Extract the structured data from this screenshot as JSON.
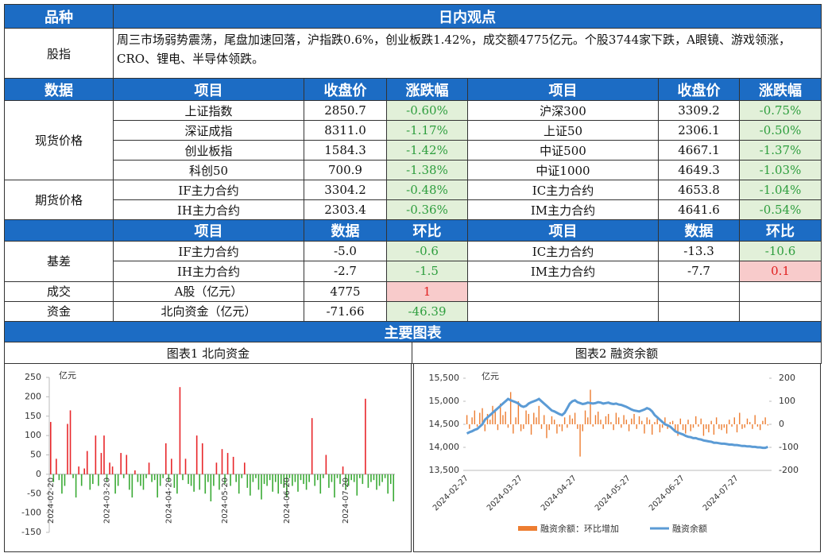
{
  "header": {
    "category": "品种",
    "view": "日内观点"
  },
  "overview": {
    "label": "股指",
    "text": "周三市场弱势震荡，尾盘加速回落，沪指跌0.6%，创业板跌1.42%，成交额4775亿元。个股3744家下跌，A眼镜、游戏领涨，CRO、锂电、半导体领跌。"
  },
  "prices": {
    "headers": [
      "数据",
      "项目",
      "收盘价",
      "涨跌幅",
      "项目",
      "收盘价",
      "涨跌幅"
    ],
    "groups": [
      {
        "label": "现货价格",
        "rows": [
          [
            "上证指数",
            "2850.7",
            "-0.60%",
            "沪深300",
            "3309.2",
            "-0.75%"
          ],
          [
            "深证成指",
            "8311.0",
            "-1.17%",
            "上证50",
            "2306.1",
            "-0.50%"
          ],
          [
            "创业板指",
            "1584.3",
            "-1.42%",
            "中证500",
            "4667.1",
            "-1.37%"
          ],
          [
            "科创50",
            "700.9",
            "-1.38%",
            "中证1000",
            "4649.3",
            "-1.03%"
          ]
        ]
      },
      {
        "label": "期货价格",
        "rows": [
          [
            "IF主力合约",
            "3304.2",
            "-0.48%",
            "IC主力合约",
            "4653.8",
            "-1.04%"
          ],
          [
            "IH主力合约",
            "2303.4",
            "-0.36%",
            "IM主力合约",
            "4641.6",
            "-0.54%"
          ]
        ]
      }
    ]
  },
  "basis": {
    "headers": [
      "项目",
      "数据",
      "环比",
      "项目",
      "数据",
      "环比"
    ],
    "groups": [
      {
        "label": "基差",
        "rows": [
          [
            "IF主力合约",
            "-5.0",
            "-0.6",
            "IC主力合约",
            "-13.3",
            "-10.6"
          ],
          [
            "IH主力合约",
            "-2.7",
            "-1.5",
            "IM主力合约",
            "-7.7",
            "0.1"
          ]
        ]
      },
      {
        "label": "成交",
        "rows": [
          [
            "A股（亿元）",
            "4775",
            "1"
          ]
        ]
      },
      {
        "label": "资金",
        "rows": [
          [
            "北向资金（亿元）",
            "-71.66",
            "-46.39"
          ]
        ]
      }
    ]
  },
  "sections": {
    "charts": "主要图表"
  },
  "chart_data": [
    {
      "type": "bar",
      "title": "图表1  北向资金",
      "y_label": "亿元",
      "positive_color": "#e8262a",
      "negative_color": "#3aaa35",
      "ylim": [
        -150,
        250
      ],
      "yticks": [
        -150,
        -100,
        -50,
        0,
        50,
        100,
        150,
        200,
        250
      ],
      "categories": [
        "2024-02-20",
        null,
        null,
        null,
        null,
        null,
        null,
        null,
        null,
        null,
        null,
        null,
        null,
        null,
        null,
        null,
        null,
        null,
        null,
        null,
        "2024-03-20",
        null,
        null,
        null,
        null,
        null,
        null,
        null,
        null,
        null,
        null,
        null,
        null,
        null,
        null,
        null,
        null,
        null,
        null,
        null,
        null,
        null,
        "2024-04-20",
        null,
        null,
        null,
        null,
        null,
        null,
        null,
        null,
        null,
        null,
        null,
        null,
        null,
        null,
        null,
        null,
        null,
        null,
        null,
        "2024-05-20",
        null,
        null,
        null,
        null,
        null,
        null,
        null,
        null,
        null,
        null,
        null,
        null,
        null,
        null,
        null,
        null,
        null,
        null,
        null,
        null,
        null,
        "2024-06-20",
        null,
        null,
        null,
        null,
        null,
        null,
        null,
        null,
        null,
        null,
        null,
        null,
        null,
        null,
        null,
        null,
        null,
        null,
        null,
        null,
        "2024-07-20",
        null,
        null,
        null,
        null,
        null,
        null,
        null,
        null,
        null,
        null,
        null,
        null,
        null,
        null,
        null,
        null,
        null
      ],
      "values": [
        135,
        -20,
        40,
        -15,
        -50,
        -30,
        130,
        165,
        -10,
        -60,
        20,
        -30,
        15,
        60,
        -40,
        -25,
        100,
        -30,
        55,
        100,
        -20,
        30,
        20,
        -50,
        -30,
        55,
        -10,
        50,
        -40,
        -60,
        10,
        -20,
        -30,
        -40,
        -10,
        30,
        -20,
        -15,
        -60,
        -30,
        -10,
        80,
        -20,
        40,
        -35,
        -50,
        225,
        -15,
        40,
        -25,
        -30,
        -45,
        100,
        -40,
        80,
        -50,
        -20,
        -70,
        -30,
        30,
        -40,
        65,
        -25,
        55,
        -30,
        45,
        -20,
        -50,
        -10,
        30,
        -35,
        -55,
        -20,
        -10,
        -40,
        -65,
        -25,
        -30,
        -15,
        -45,
        -20,
        -50,
        -25,
        -35,
        -60,
        -10,
        -30,
        -20,
        -45,
        -15,
        -25,
        -40,
        -20,
        145,
        -30,
        -15,
        -50,
        -10,
        50,
        -35,
        -20,
        -60,
        -10,
        -25,
        20,
        -40,
        -30,
        -15,
        -20,
        -55,
        -10,
        -25,
        195,
        -35,
        -20,
        -15,
        -40,
        -30,
        -20,
        -10,
        -50,
        -25,
        -70
      ]
    },
    {
      "type": "combo",
      "title": "图表2  融资余额",
      "y_label": "亿元",
      "ylim": [
        13500,
        15500
      ],
      "yticks": [
        {
          "value": 13500,
          "label": "13,500"
        },
        {
          "value": 14000,
          "label": "14,000"
        },
        {
          "value": 14500,
          "label": "14,500"
        },
        {
          "value": 15000,
          "label": "15,000"
        },
        {
          "value": 15500,
          "label": "15,500"
        }
      ],
      "y2lim": [
        -200,
        200
      ],
      "y2ticks": [
        -200,
        -100,
        0,
        100,
        200
      ],
      "categories": [
        "2024-02-27",
        null,
        null,
        null,
        null,
        null,
        null,
        null,
        null,
        null,
        null,
        null,
        null,
        null,
        null,
        null,
        null,
        null,
        null,
        null,
        null,
        "2024-03-27",
        null,
        null,
        null,
        null,
        null,
        null,
        null,
        null,
        null,
        null,
        null,
        null,
        null,
        null,
        null,
        null,
        null,
        null,
        null,
        null,
        "2024-04-27",
        null,
        null,
        null,
        null,
        null,
        null,
        null,
        null,
        null,
        null,
        null,
        null,
        null,
        null,
        null,
        null,
        null,
        null,
        null,
        null,
        "2024-05-27",
        null,
        null,
        null,
        null,
        null,
        null,
        null,
        null,
        null,
        null,
        null,
        null,
        null,
        null,
        null,
        null,
        null,
        null,
        null,
        null,
        "2024-06-27",
        null,
        null,
        null,
        null,
        null,
        null,
        null,
        null,
        null,
        null,
        null,
        null,
        null,
        null,
        null,
        null,
        null,
        null,
        null,
        null,
        "2024-07-27",
        null,
        null,
        null,
        null,
        null,
        null,
        null,
        null,
        null,
        null,
        null,
        null
      ],
      "series": [
        {
          "name": "融资余额：环比增加",
          "color": "#ed7d31",
          "axis": "y2",
          "values": [
            40,
            -20,
            30,
            60,
            -10,
            50,
            70,
            -30,
            45,
            20,
            80,
            60,
            -25,
            90,
            40,
            55,
            -15,
            140,
            -40,
            30,
            100,
            -30,
            -20,
            60,
            45,
            -45,
            50,
            30,
            80,
            -20,
            40,
            -60,
            -25,
            35,
            20,
            -40,
            -10,
            -30,
            30,
            -15,
            40,
            25,
            50,
            -20,
            -140,
            -30,
            60,
            30,
            150,
            -10,
            40,
            55,
            20,
            -20,
            35,
            45,
            10,
            -25,
            50,
            30,
            -15,
            40,
            20,
            -30,
            25,
            45,
            -20,
            35,
            15,
            -40,
            30,
            20,
            -45,
            10,
            25,
            -35,
            -15,
            30,
            -20,
            10,
            15,
            -30,
            -50,
            25,
            -25,
            -40,
            20,
            -30,
            -15,
            35,
            -10,
            25,
            -50,
            -20,
            -35,
            15,
            -45,
            30,
            -20,
            -25,
            -15,
            -40,
            20,
            -10,
            30,
            -35,
            50,
            -20,
            -15,
            25,
            10,
            -20,
            40,
            -10,
            -25,
            15,
            30,
            -5
          ]
        },
        {
          "name": "融资余额",
          "color": "#5b9bd5",
          "values": [
            14300,
            14330,
            14350,
            14380,
            14400,
            14450,
            14500,
            14600,
            14650,
            14700,
            14750,
            14800,
            14850,
            14900,
            14950,
            15000,
            15050,
            15020,
            15000,
            14980,
            14950,
            14900,
            14880,
            14900,
            14950,
            14980,
            15000,
            15020,
            15050,
            15000,
            14950,
            14900,
            14850,
            14800,
            14780,
            14750,
            14720,
            14700,
            14750,
            14850,
            14950,
            15000,
            15020,
            14980,
            14960,
            14940,
            14950,
            14970,
            14960,
            14950,
            14960,
            14980,
            14970,
            14950,
            14960,
            14970,
            14950,
            14940,
            14950,
            14930,
            14920,
            14900,
            14880,
            14850,
            14820,
            14800,
            14790,
            14780,
            14800,
            14820,
            14850,
            14830,
            14780,
            14700,
            14650,
            14600,
            14550,
            14500,
            14480,
            14450,
            14400,
            14350,
            14320,
            14300,
            14280,
            14250,
            14230,
            14220,
            14200,
            14200,
            14180,
            14170,
            14150,
            14140,
            14130,
            14120,
            14100,
            14100,
            14090,
            14080,
            14080,
            14070,
            14060,
            14060,
            14050,
            14050,
            14040,
            14030,
            14030,
            14020,
            14020,
            14010,
            14010,
            14000,
            14000,
            13990,
            13990,
            14010
          ]
        }
      ]
    }
  ]
}
